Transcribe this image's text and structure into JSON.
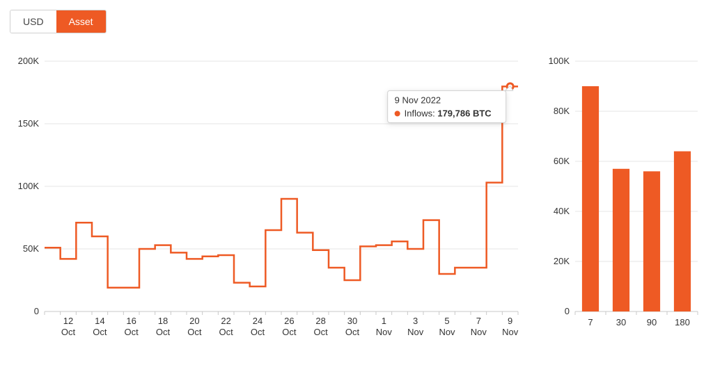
{
  "colors": {
    "accent": "#ee5a24",
    "background": "#ffffff",
    "grid": "#e5e5e5",
    "axis": "#c8c8c8",
    "text": "#333333",
    "tooltip_bg": "#ffffff",
    "tooltip_border": "#d0d0d0"
  },
  "toggle": {
    "options": [
      "USD",
      "Asset"
    ],
    "selected": "Asset"
  },
  "line_chart": {
    "type": "step-line",
    "ylim": [
      0,
      200000
    ],
    "yticks": [
      0,
      50000,
      100000,
      150000,
      200000
    ],
    "ytick_labels": [
      "0",
      "50K",
      "100K",
      "150K",
      "200K"
    ],
    "ytick_fontsize": 13,
    "xtick_fontsize": 13,
    "line_width": 2.5,
    "line_color": "#ee5a24",
    "grid_color": "#e5e5e5",
    "background_color": "#ffffff",
    "x_labels_major": [
      "12 Oct",
      "14 Oct",
      "16 Oct",
      "18 Oct",
      "20 Oct",
      "22 Oct",
      "24 Oct",
      "26 Oct",
      "28 Oct",
      "30 Oct",
      "1 Nov",
      "3 Nov",
      "5 Nov",
      "7 Nov",
      "9 Nov"
    ],
    "series": [
      {
        "label": "11 Oct",
        "value": 51000
      },
      {
        "label": "12 Oct",
        "value": 42000
      },
      {
        "label": "13 Oct",
        "value": 71000
      },
      {
        "label": "14 Oct",
        "value": 60000
      },
      {
        "label": "15 Oct",
        "value": 19000
      },
      {
        "label": "16 Oct",
        "value": 19000
      },
      {
        "label": "17 Oct",
        "value": 50000
      },
      {
        "label": "18 Oct",
        "value": 53000
      },
      {
        "label": "19 Oct",
        "value": 47000
      },
      {
        "label": "20 Oct",
        "value": 42000
      },
      {
        "label": "21 Oct",
        "value": 44000
      },
      {
        "label": "22 Oct",
        "value": 45000
      },
      {
        "label": "23 Oct",
        "value": 23000
      },
      {
        "label": "24 Oct",
        "value": 20000
      },
      {
        "label": "25 Oct",
        "value": 65000
      },
      {
        "label": "26 Oct",
        "value": 90000
      },
      {
        "label": "27 Oct",
        "value": 63000
      },
      {
        "label": "28 Oct",
        "value": 49000
      },
      {
        "label": "29 Oct",
        "value": 35000
      },
      {
        "label": "30 Oct",
        "value": 25000
      },
      {
        "label": "31 Oct",
        "value": 52000
      },
      {
        "label": "1 Nov",
        "value": 53000
      },
      {
        "label": "2 Nov",
        "value": 56000
      },
      {
        "label": "3 Nov",
        "value": 50000
      },
      {
        "label": "4 Nov",
        "value": 73000
      },
      {
        "label": "5 Nov",
        "value": 30000
      },
      {
        "label": "6 Nov",
        "value": 35000
      },
      {
        "label": "7 Nov",
        "value": 35000
      },
      {
        "label": "8 Nov",
        "value": 103000
      },
      {
        "label": "9 Nov",
        "value": 179786
      }
    ],
    "highlight": {
      "index": 29,
      "date_text": "9 Nov 2022",
      "series_name": "Inflows:",
      "value_text": "179,786 BTC",
      "marker_fill": "#ee5a24",
      "marker_radius_outer": 6,
      "marker_radius_inner": 3
    }
  },
  "bar_chart": {
    "type": "bar",
    "ylim": [
      0,
      100000
    ],
    "yticks": [
      0,
      20000,
      40000,
      60000,
      80000,
      100000
    ],
    "ytick_labels": [
      "0",
      "20K",
      "40K",
      "60K",
      "80K",
      "100K"
    ],
    "ytick_fontsize": 13,
    "xtick_fontsize": 13,
    "bar_color": "#ee5a24",
    "bar_width_ratio": 0.55,
    "background_color": "#ffffff",
    "grid_color": "#e5e5e5",
    "categories": [
      "7",
      "30",
      "90",
      "180"
    ],
    "values": [
      90000,
      57000,
      56000,
      64000
    ]
  }
}
